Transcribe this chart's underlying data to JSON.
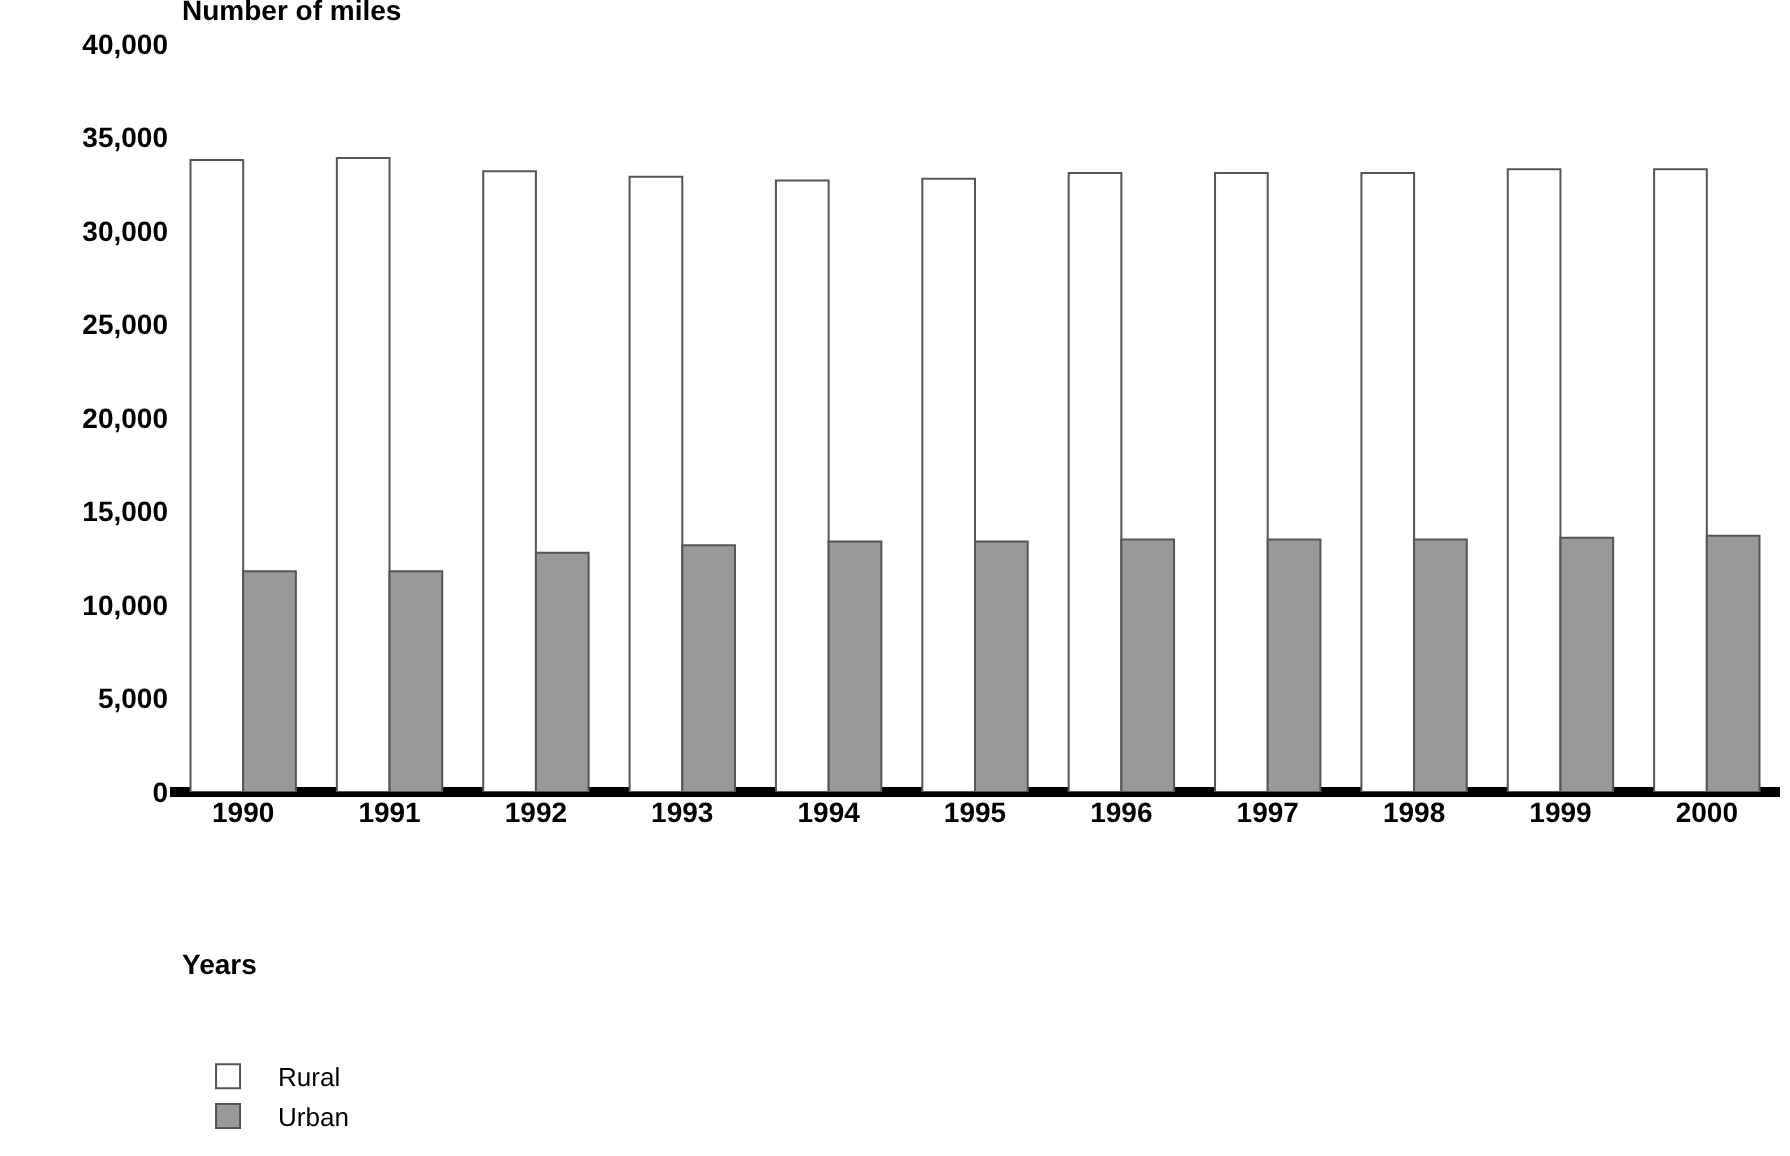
{
  "chart_data": {
    "type": "bar",
    "ylabel": "Number of miles",
    "xlabel": "Years",
    "categories": [
      "1990",
      "1991",
      "1992",
      "1993",
      "1994",
      "1995",
      "1996",
      "1997",
      "1998",
      "1999",
      "2000"
    ],
    "series": [
      {
        "name": "Rural",
        "color": "#ffffff",
        "values": [
          33800,
          33900,
          33200,
          32900,
          32700,
          32800,
          33100,
          33100,
          33100,
          33300,
          33300
        ]
      },
      {
        "name": "Urban",
        "color": "#999999",
        "values": [
          11800,
          11800,
          12800,
          13200,
          13400,
          13400,
          13500,
          13500,
          13500,
          13600,
          13700
        ]
      }
    ],
    "ylim": [
      0,
      40000
    ],
    "yticks": [
      {
        "value": 0,
        "label": "0"
      },
      {
        "value": 5000,
        "label": "5,000"
      },
      {
        "value": 10000,
        "label": "10,000"
      },
      {
        "value": 15000,
        "label": "15,000"
      },
      {
        "value": 20000,
        "label": "20,000"
      },
      {
        "value": 25000,
        "label": "25,000"
      },
      {
        "value": 30000,
        "label": "30,000"
      },
      {
        "value": 35000,
        "label": "35,000"
      },
      {
        "value": 40000,
        "label": "40,000"
      }
    ],
    "grid": false,
    "legend": "bottom left"
  }
}
